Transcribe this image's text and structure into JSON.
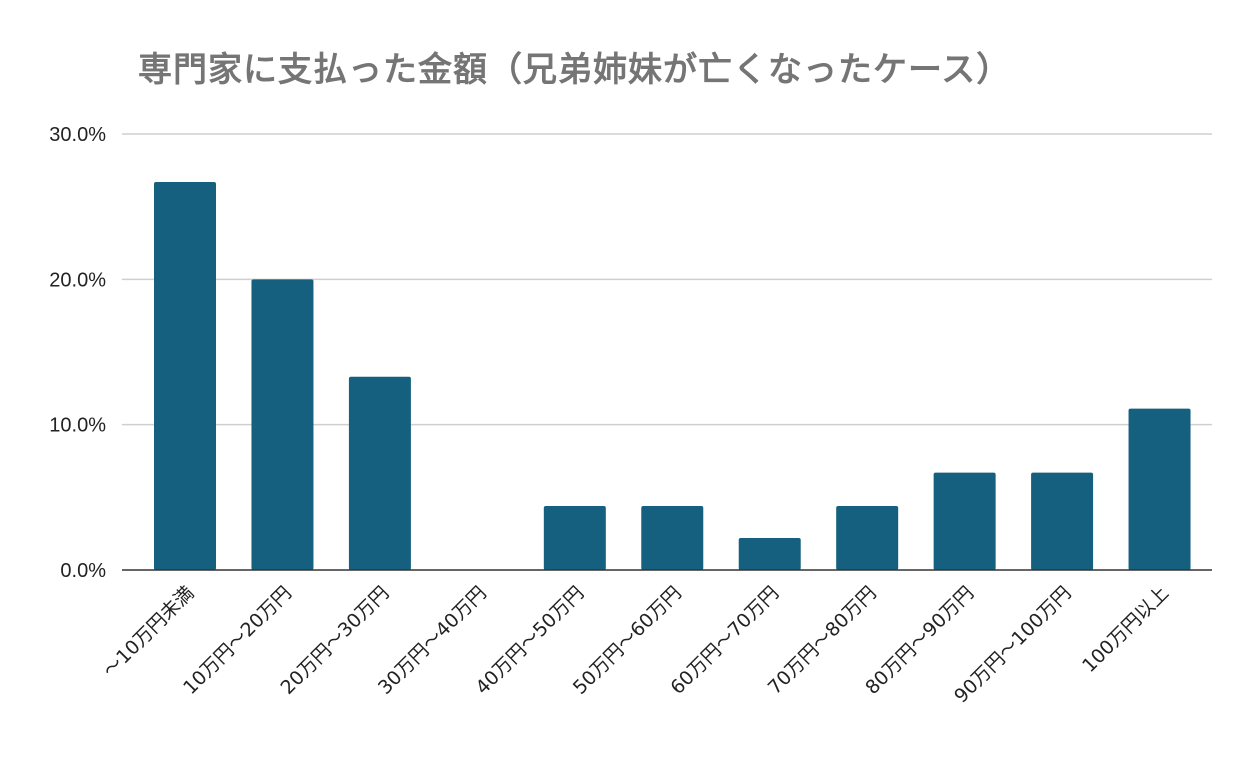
{
  "chart_data": {
    "type": "bar",
    "title": "専門家に支払った金額（兄弟姉妹が亡くなったケース）",
    "xlabel": "",
    "ylabel": "",
    "categories": [
      "～10万円未満",
      "10万円～20万円",
      "20万円～30万円",
      "30万円～40万円",
      "40万円～50万円",
      "50万円～60万円",
      "60万円～70万円",
      "70万円～80万円",
      "80万円～90万円",
      "90万円～100万円",
      "100万円以上"
    ],
    "values": [
      26.7,
      20.0,
      13.3,
      0.0,
      4.4,
      4.4,
      2.2,
      4.4,
      6.7,
      6.7,
      11.1
    ],
    "ylim": [
      0,
      30
    ],
    "yticks": [
      0,
      10,
      20,
      30
    ],
    "ytick_labels": [
      "0.0%",
      "10.0%",
      "20.0%",
      "30.0%"
    ],
    "bar_color": "#16607f",
    "grid": true,
    "legend": "none"
  }
}
